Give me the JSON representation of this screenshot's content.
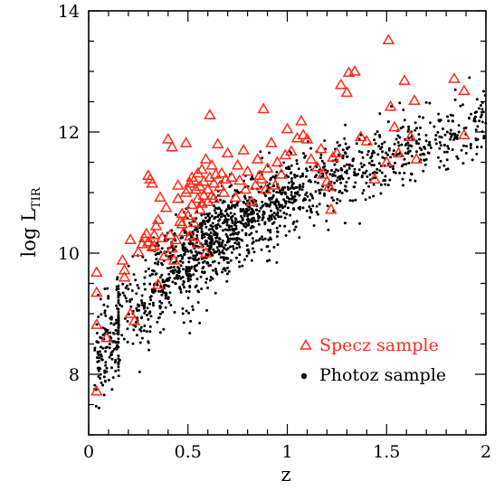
{
  "chart_data": {
    "type": "scatter",
    "xlabel": "z",
    "ylabel_main": "log L",
    "ylabel_sub": "TIR",
    "xlim": [
      0,
      2
    ],
    "ylim": [
      7,
      14
    ],
    "x_ticks": [
      0,
      0.5,
      1,
      1.5,
      2
    ],
    "x_tick_labels": [
      "0",
      "0.5",
      "1",
      "1.5",
      "2"
    ],
    "y_ticks": [
      8,
      10,
      12,
      14
    ],
    "y_tick_labels": [
      "8",
      "10",
      "12",
      "14"
    ],
    "grid": false,
    "legend_placement": "bottom-right",
    "colors": {
      "specz": "#ff2a1a",
      "photoz": "#000000"
    },
    "series": [
      {
        "name": "Specz sample",
        "marker": "triangle-open",
        "points": [
          [
            0.04,
            7.72
          ],
          [
            0.04,
            8.82
          ],
          [
            0.04,
            9.35
          ],
          [
            0.04,
            9.68
          ],
          [
            0.09,
            8.6
          ],
          [
            0.17,
            9.88
          ],
          [
            0.18,
            9.72
          ],
          [
            0.18,
            9.6
          ],
          [
            0.21,
            10.22
          ],
          [
            0.21,
            9.0
          ],
          [
            0.23,
            8.88
          ],
          [
            0.25,
            10.02
          ],
          [
            0.27,
            10.15
          ],
          [
            0.28,
            10.25
          ],
          [
            0.29,
            10.32
          ],
          [
            0.3,
            10.18
          ],
          [
            0.3,
            11.28
          ],
          [
            0.31,
            11.22
          ],
          [
            0.32,
            10.1
          ],
          [
            0.32,
            11.15
          ],
          [
            0.33,
            10.12
          ],
          [
            0.33,
            10.3
          ],
          [
            0.34,
            10.45
          ],
          [
            0.35,
            10.55
          ],
          [
            0.35,
            9.48
          ],
          [
            0.36,
            10.92
          ],
          [
            0.37,
            10.25
          ],
          [
            0.38,
            9.95
          ],
          [
            0.39,
            10.75
          ],
          [
            0.4,
            11.88
          ],
          [
            0.41,
            10.3
          ],
          [
            0.42,
            10.08
          ],
          [
            0.42,
            11.75
          ],
          [
            0.43,
            9.88
          ],
          [
            0.44,
            10.22
          ],
          [
            0.45,
            10.9
          ],
          [
            0.45,
            11.12
          ],
          [
            0.46,
            10.52
          ],
          [
            0.47,
            10.65
          ],
          [
            0.47,
            10.48
          ],
          [
            0.48,
            10.35
          ],
          [
            0.49,
            11.0
          ],
          [
            0.49,
            11.82
          ],
          [
            0.5,
            10.62
          ],
          [
            0.5,
            11.05
          ],
          [
            0.51,
            11.15
          ],
          [
            0.51,
            10.28
          ],
          [
            0.52,
            10.8
          ],
          [
            0.52,
            11.25
          ],
          [
            0.53,
            11.2
          ],
          [
            0.53,
            10.5
          ],
          [
            0.54,
            11.05
          ],
          [
            0.55,
            10.9
          ],
          [
            0.55,
            11.32
          ],
          [
            0.55,
            10.15
          ],
          [
            0.56,
            11.1
          ],
          [
            0.56,
            10.72
          ],
          [
            0.57,
            11.38
          ],
          [
            0.57,
            10.82
          ],
          [
            0.58,
            11.18
          ],
          [
            0.58,
            10.95
          ],
          [
            0.59,
            11.55
          ],
          [
            0.59,
            10.0
          ],
          [
            0.6,
            11.05
          ],
          [
            0.6,
            10.85
          ],
          [
            0.61,
            11.25
          ],
          [
            0.61,
            12.28
          ],
          [
            0.62,
            10.95
          ],
          [
            0.62,
            11.45
          ],
          [
            0.63,
            11.15
          ],
          [
            0.63,
            10.9
          ],
          [
            0.64,
            11.3
          ],
          [
            0.65,
            11.8
          ],
          [
            0.66,
            11.1
          ],
          [
            0.67,
            11.32
          ],
          [
            0.68,
            11.0
          ],
          [
            0.69,
            11.22
          ],
          [
            0.7,
            11.65
          ],
          [
            0.72,
            11.25
          ],
          [
            0.74,
            10.92
          ],
          [
            0.75,
            11.45
          ],
          [
            0.76,
            11.2
          ],
          [
            0.78,
            11.7
          ],
          [
            0.79,
            11.05
          ],
          [
            0.8,
            11.35
          ],
          [
            0.82,
            10.85
          ],
          [
            0.84,
            11.12
          ],
          [
            0.85,
            11.55
          ],
          [
            0.86,
            11.28
          ],
          [
            0.87,
            11.22
          ],
          [
            0.88,
            12.38
          ],
          [
            0.89,
            11.05
          ],
          [
            0.9,
            11.4
          ],
          [
            0.92,
            11.82
          ],
          [
            0.94,
            11.12
          ],
          [
            0.95,
            11.5
          ],
          [
            0.97,
            11.3
          ],
          [
            0.99,
            11.62
          ],
          [
            1.0,
            12.05
          ],
          [
            1.02,
            11.68
          ],
          [
            1.05,
            11.9
          ],
          [
            1.07,
            12.18
          ],
          [
            1.08,
            11.95
          ],
          [
            1.1,
            11.88
          ],
          [
            1.12,
            11.55
          ],
          [
            1.15,
            11.42
          ],
          [
            1.17,
            11.72
          ],
          [
            1.18,
            11.3
          ],
          [
            1.2,
            11.18
          ],
          [
            1.21,
            11.1
          ],
          [
            1.22,
            10.72
          ],
          [
            1.23,
            11.58
          ],
          [
            1.25,
            11.65
          ],
          [
            1.27,
            12.78
          ],
          [
            1.3,
            12.65
          ],
          [
            1.31,
            12.98
          ],
          [
            1.34,
            13.0
          ],
          [
            1.37,
            11.92
          ],
          [
            1.4,
            11.85
          ],
          [
            1.44,
            11.22
          ],
          [
            1.5,
            11.5
          ],
          [
            1.51,
            13.52
          ],
          [
            1.52,
            12.42
          ],
          [
            1.54,
            12.08
          ],
          [
            1.56,
            11.65
          ],
          [
            1.59,
            12.85
          ],
          [
            1.62,
            11.92
          ],
          [
            1.64,
            12.52
          ],
          [
            1.65,
            11.55
          ],
          [
            1.84,
            12.88
          ],
          [
            1.89,
            12.68
          ],
          [
            1.89,
            11.95
          ]
        ]
      },
      {
        "name": "Photoz sample",
        "marker": "filled-dot"
      }
    ]
  },
  "legend": {
    "specz_label": "Specz sample",
    "photoz_label": "Photoz sample"
  }
}
